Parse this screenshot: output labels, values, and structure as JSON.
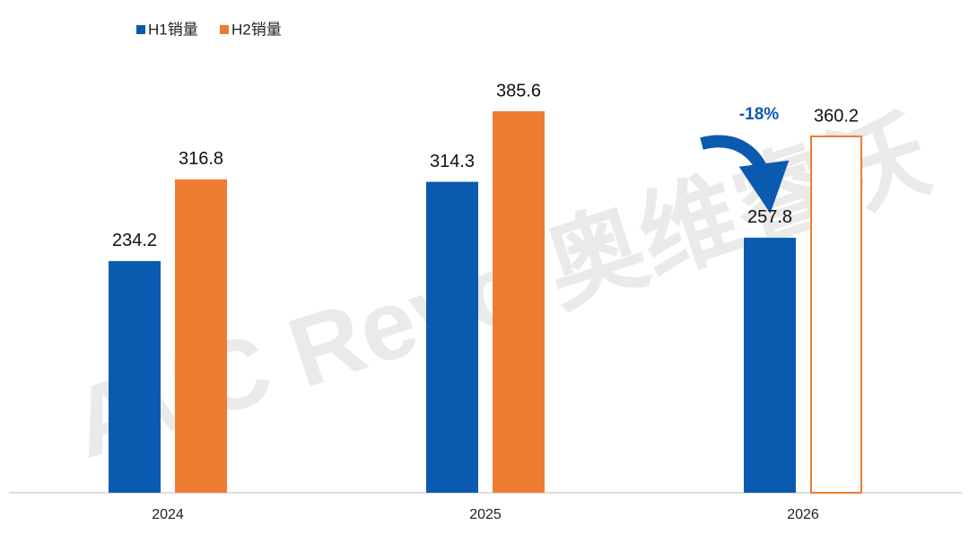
{
  "chart_data": {
    "type": "bar",
    "categories": [
      "2024",
      "2025",
      "2026"
    ],
    "series": [
      {
        "name": "H1销量",
        "color": "#0a5bb0",
        "values": [
          234.2,
          314.3,
          257.8
        ]
      },
      {
        "name": "H2销量",
        "color": "#ed7d31",
        "values": [
          316.8,
          385.6,
          360.2
        ],
        "hollow": [
          false,
          false,
          true
        ]
      }
    ],
    "ylim": [
      0,
      450
    ],
    "annotation": "-18%",
    "watermark": "AVC Revo 奥维睿沃"
  }
}
